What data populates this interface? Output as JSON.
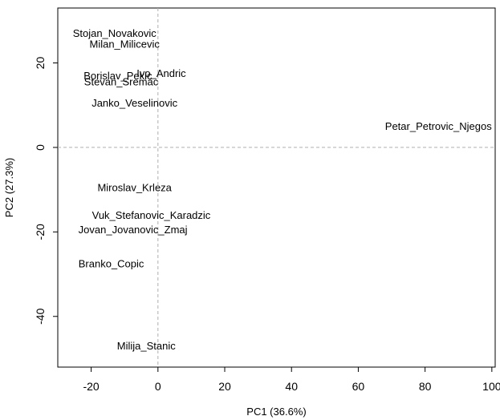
{
  "chart_data": {
    "type": "scatter",
    "title": "",
    "xlabel": "PC1 (36.6%)",
    "ylabel": "PC2 (27.3%)",
    "xlim": [
      -30,
      101
    ],
    "ylim": [
      -52,
      33
    ],
    "xticks": [
      -20,
      0,
      20,
      40,
      60,
      80,
      100
    ],
    "yticks": [
      -40,
      -20,
      0,
      20
    ],
    "reference_lines": {
      "x": 0,
      "y": 0,
      "style": "dashed",
      "color": "#b0b0b0"
    },
    "grid": false,
    "points": [
      {
        "label": "Stojan_Novakovic",
        "x": -13,
        "y": 27
      },
      {
        "label": "Milan_Milicevic",
        "x": -10,
        "y": 24.5
      },
      {
        "label": "Borislav_Pekic",
        "x": -12,
        "y": 17
      },
      {
        "label": "Ivo_Andric",
        "x": 1,
        "y": 17.5
      },
      {
        "label": "Stevan_Sremac",
        "x": -11,
        "y": 15.5
      },
      {
        "label": "Janko_Veselinovic",
        "x": -7,
        "y": 10.5
      },
      {
        "label": "Petar_Petrovic_Njegos",
        "x": 84,
        "y": 5
      },
      {
        "label": "Miroslav_Krleza",
        "x": -7,
        "y": -9.5
      },
      {
        "label": "Vuk_Stefanovic_Karadzic",
        "x": -2,
        "y": -16
      },
      {
        "label": "Jovan_Jovanovic_Zmaj",
        "x": -7.5,
        "y": -19.5
      },
      {
        "label": "Branko_Copic",
        "x": -14,
        "y": -27.5
      },
      {
        "label": "Milija_Stanic",
        "x": -3.5,
        "y": -47
      }
    ]
  }
}
